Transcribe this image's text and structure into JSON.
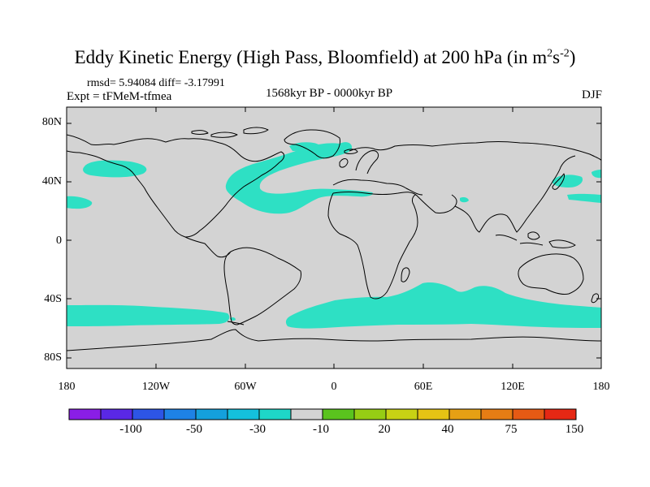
{
  "title_main": "Eddy Kinetic Energy (High Pass, Bloomfield) at 200 hPa (in m",
  "title_exp1": "2",
  "title_mid": "s",
  "title_exp2": "-2",
  "title_end": ")",
  "stats": "rmsd= 5.94084 diff= -3.17991",
  "expt": "Expt = tFMeM-tfmea",
  "period": "1568kyr BP - 0000kyr BP",
  "season": "DJF",
  "lat_labels": [
    "80N",
    "40N",
    "0",
    "40S",
    "80S"
  ],
  "lon_labels": [
    "180",
    "120W",
    "60W",
    "0",
    "60E",
    "120E",
    "180"
  ],
  "colorbar": {
    "colors": [
      "#8a1ee6",
      "#5a28e6",
      "#2d55e6",
      "#1e82e6",
      "#14a0dc",
      "#14c0dc",
      "#1ed7c8",
      "#d3d3d3",
      "#5ac31e",
      "#96cd14",
      "#c8d214",
      "#e6c314",
      "#e6a014",
      "#e67d14",
      "#e65a14",
      "#e62814"
    ],
    "labels": [
      "-100",
      "-50",
      "-30",
      "-10",
      "20",
      "40",
      "75",
      "150"
    ]
  },
  "colors": {
    "land_ocean": "#d3d3d3",
    "anomaly": "#2ee0c4",
    "coast": "#000000"
  }
}
